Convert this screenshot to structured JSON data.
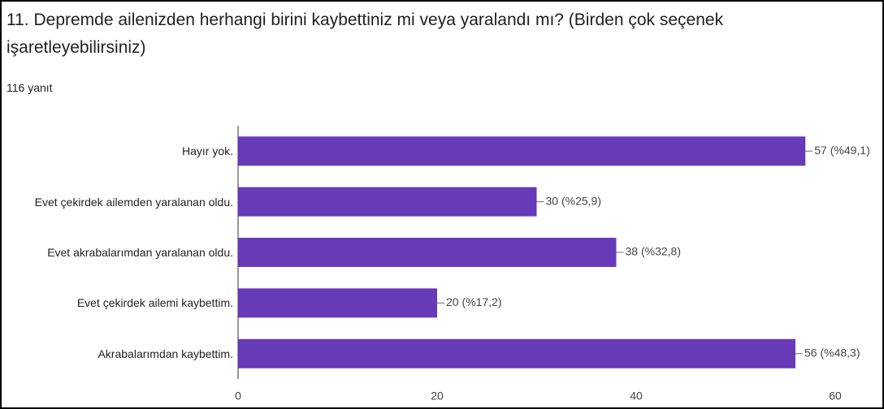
{
  "chart_data": {
    "type": "barh",
    "title": "11. Depremde ailenizden herhangi birini kaybettiniz mi veya yaralandı mı? (Birden çok seçenek işaretleyebilirsiniz)",
    "subtitle": "116 yanıt",
    "categories": [
      "Hayır yok.",
      "Evet çekirdek ailemden yaralanan oldu.",
      "Evet akrabalarımdan yaralanan oldu.",
      "Evet çekirdek ailemi kaybettim.",
      "Akrabalarımdan kaybettim."
    ],
    "values": [
      57,
      30,
      38,
      20,
      56
    ],
    "value_labels": [
      "57 (%49,1)",
      "30 (%25,9)",
      "38 (%32,8)",
      "20 (%17,2)",
      "56 (%48,3)"
    ],
    "color": "#673ab7",
    "xlim": [
      0,
      60
    ],
    "xticks": [
      0,
      20,
      40,
      60
    ],
    "grid": false
  }
}
